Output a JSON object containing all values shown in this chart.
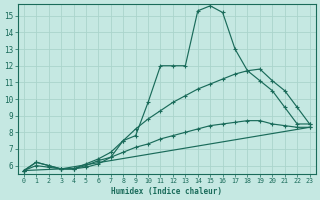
{
  "xlabel": "Humidex (Indice chaleur)",
  "bg_color": "#c5e8e2",
  "grid_color": "#aad4cc",
  "line_color": "#1a6b5a",
  "xlim": [
    -0.5,
    23.5
  ],
  "ylim": [
    5.5,
    15.7
  ],
  "yticks": [
    6,
    7,
    8,
    9,
    10,
    11,
    12,
    13,
    14,
    15
  ],
  "xticks": [
    0,
    1,
    2,
    3,
    4,
    5,
    6,
    7,
    8,
    9,
    10,
    11,
    12,
    13,
    14,
    15,
    16,
    17,
    18,
    19,
    20,
    21,
    22,
    23
  ],
  "series": [
    {
      "x": [
        0,
        1,
        2,
        3,
        4,
        5,
        6,
        7,
        8,
        9,
        10,
        11,
        12,
        13,
        14,
        15,
        16,
        17,
        18,
        19,
        20,
        21,
        22,
        23
      ],
      "y": [
        5.7,
        6.2,
        6.0,
        5.8,
        5.8,
        6.0,
        6.3,
        6.5,
        7.5,
        7.8,
        9.8,
        12.0,
        12.0,
        12.0,
        15.3,
        15.6,
        15.2,
        13.0,
        11.7,
        11.1,
        10.5,
        9.5,
        8.5,
        8.5
      ]
    },
    {
      "x": [
        0,
        1,
        2,
        3,
        4,
        5,
        6,
        7,
        8,
        9,
        10,
        11,
        12,
        13,
        14,
        15,
        16,
        17,
        18,
        19,
        20,
        21,
        22,
        23
      ],
      "y": [
        5.7,
        6.2,
        6.0,
        5.8,
        5.8,
        6.1,
        6.4,
        6.8,
        7.5,
        8.2,
        8.8,
        9.3,
        9.8,
        10.2,
        10.6,
        10.9,
        11.2,
        11.5,
        11.7,
        11.8,
        11.1,
        10.5,
        9.5,
        8.5
      ]
    },
    {
      "x": [
        0,
        1,
        2,
        3,
        4,
        5,
        6,
        7,
        8,
        9,
        10,
        11,
        12,
        13,
        14,
        15,
        16,
        17,
        18,
        19,
        20,
        21,
        22,
        23
      ],
      "y": [
        5.7,
        6.0,
        5.9,
        5.8,
        5.8,
        5.9,
        6.1,
        6.5,
        6.8,
        7.1,
        7.3,
        7.6,
        7.8,
        8.0,
        8.2,
        8.4,
        8.5,
        8.6,
        8.7,
        8.7,
        8.5,
        8.4,
        8.3,
        8.3
      ]
    },
    {
      "x": [
        0,
        3,
        23
      ],
      "y": [
        5.7,
        5.8,
        8.3
      ]
    }
  ]
}
